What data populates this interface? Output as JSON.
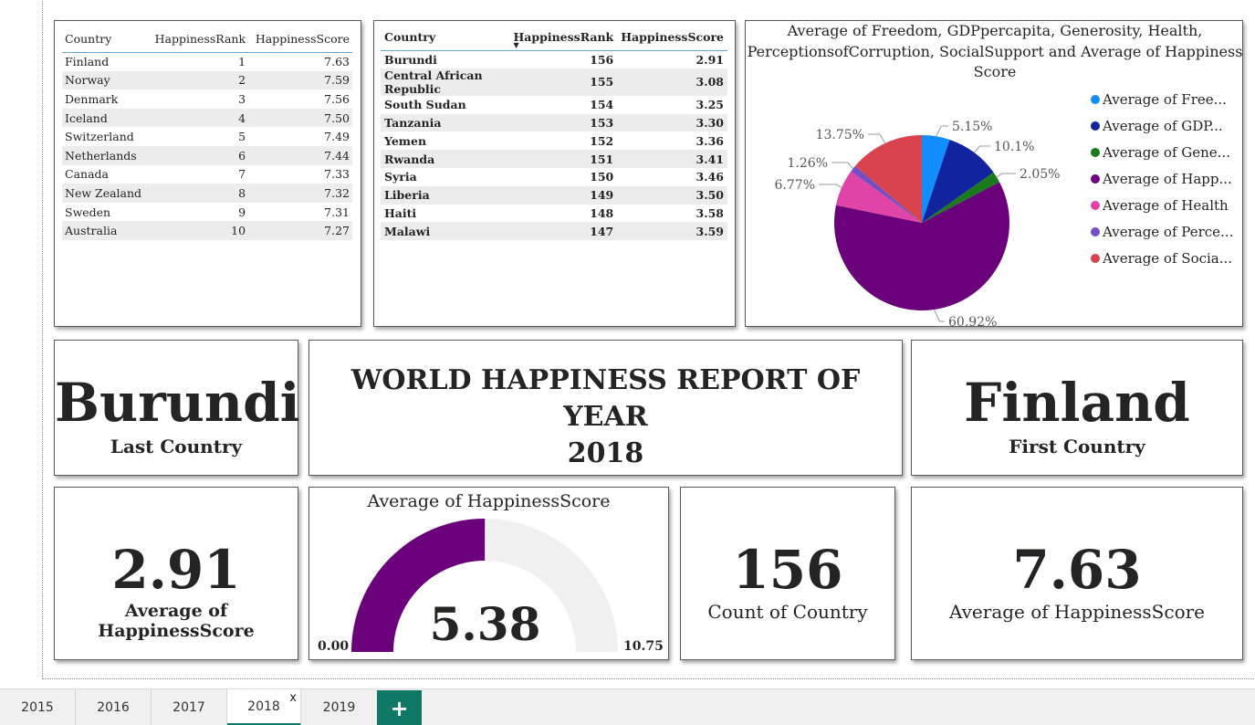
{
  "top_table": {
    "headers": [
      "Country",
      "HappinessRank",
      "HappinessScore"
    ],
    "rows": [
      [
        "Finland",
        "1",
        "7.63"
      ],
      [
        "Norway",
        "2",
        "7.59"
      ],
      [
        "Denmark",
        "3",
        "7.56"
      ],
      [
        "Iceland",
        "4",
        "7.50"
      ],
      [
        "Switzerland",
        "5",
        "7.49"
      ],
      [
        "Netherlands",
        "6",
        "7.44"
      ],
      [
        "Canada",
        "7",
        "7.33"
      ],
      [
        "New Zealand",
        "8",
        "7.32"
      ],
      [
        "Sweden",
        "9",
        "7.31"
      ],
      [
        "Australia",
        "10",
        "7.27"
      ]
    ]
  },
  "bottom_table": {
    "headers": [
      "Country",
      "HappinessRank",
      "HappinessScore"
    ],
    "rows": [
      [
        "Burundi",
        "156",
        "2.91"
      ],
      [
        "Central African Republic",
        "155",
        "3.08"
      ],
      [
        "South Sudan",
        "154",
        "3.25"
      ],
      [
        "Tanzania",
        "153",
        "3.30"
      ],
      [
        "Yemen",
        "152",
        "3.36"
      ],
      [
        "Rwanda",
        "151",
        "3.41"
      ],
      [
        "Syria",
        "150",
        "3.46"
      ],
      [
        "Liberia",
        "149",
        "3.50"
      ],
      [
        "Haiti",
        "148",
        "3.58"
      ],
      [
        "Malawi",
        "147",
        "3.59"
      ]
    ]
  },
  "pie": {
    "title_line1": "Average of Freedom, GDPpercapita, Generosity, Health,",
    "title_line2": "PerceptionsofCorruption, SocialSupport and Average of Happiness",
    "title_line3": "Score",
    "legend": [
      {
        "label": "Average of Free...",
        "color": "#118DFF"
      },
      {
        "label": "Average of GDP...",
        "color": "#12239E"
      },
      {
        "label": "Average of Gene...",
        "color": "#1B7A1B"
      },
      {
        "label": "Average of Happ...",
        "color": "#6B007B"
      },
      {
        "label": "Average of Health",
        "color": "#E044A7"
      },
      {
        "label": "Average of Perce...",
        "color": "#744EC2"
      },
      {
        "label": "Average of Socia...",
        "color": "#D9434E"
      }
    ]
  },
  "chart_data": {
    "type": "pie",
    "slices": [
      {
        "label": "5.15%",
        "value": 5.15,
        "color": "#118DFF"
      },
      {
        "label": "10.1%",
        "value": 10.1,
        "color": "#12239E"
      },
      {
        "label": "2.05%",
        "value": 2.05,
        "color": "#1B7A1B"
      },
      {
        "label": "60.92%",
        "value": 60.92,
        "color": "#6B007B"
      },
      {
        "label": "6.77%",
        "value": 6.77,
        "color": "#E044A7"
      },
      {
        "label": "1.26%",
        "value": 1.26,
        "color": "#744EC2"
      },
      {
        "label": "13.75%",
        "value": 13.75,
        "color": "#D9434E"
      }
    ],
    "legend_position": "right"
  },
  "last_country": {
    "name": "Burundi",
    "label": "Last Country"
  },
  "report": {
    "title_line1": "WORLD HAPPINESS REPORT OF YEAR",
    "title_line2": "2018"
  },
  "first_country": {
    "name": "Finland",
    "label": "First Country"
  },
  "kpi_min": {
    "value": "2.91",
    "label": "Average of HappinessScore"
  },
  "gauge": {
    "title": "Average of HappinessScore",
    "value": 5.38,
    "value_text": "5.38",
    "min": 0,
    "max": 10.75,
    "min_text": "0.00",
    "max_text": "10.75",
    "fill_color": "#6B007B",
    "track_color": "#F1F0F0"
  },
  "kpi_count": {
    "value": "156",
    "label": "Count of Country"
  },
  "kpi_max": {
    "value": "7.63",
    "label": "Average of HappinessScore"
  },
  "tabs": [
    {
      "label": "2015",
      "active": false
    },
    {
      "label": "2016",
      "active": false
    },
    {
      "label": "2017",
      "active": false
    },
    {
      "label": "2018",
      "active": true
    },
    {
      "label": "2019",
      "active": false
    }
  ],
  "tab_close_glyph": "x",
  "add_tab_glyph": "+"
}
